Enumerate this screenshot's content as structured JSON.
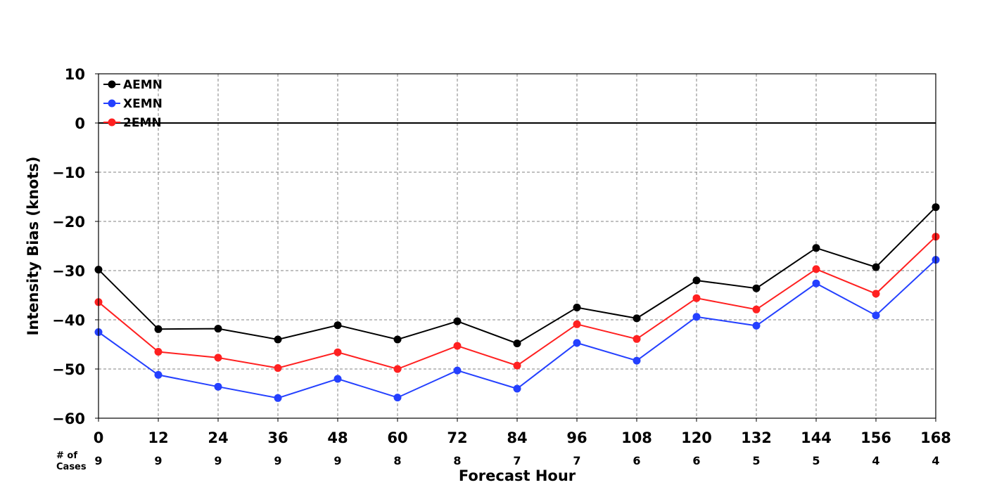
{
  "chart_data": {
    "type": "line",
    "xlabel": "Forecast Hour",
    "ylabel": "Intensity Bias (knots)",
    "ylim": [
      -60,
      10
    ],
    "y_ticks": [
      10,
      0,
      -10,
      -20,
      -30,
      -40,
      -50,
      -60
    ],
    "y_tick_labels": [
      "10",
      "0",
      "−10",
      "−20",
      "−30",
      "−40",
      "−50",
      "−60"
    ],
    "x": [
      0,
      12,
      24,
      36,
      48,
      60,
      72,
      84,
      96,
      108,
      120,
      132,
      144,
      156,
      168
    ],
    "x_tick_labels": [
      "0",
      "12",
      "24",
      "36",
      "48",
      "60",
      "72",
      "84",
      "96",
      "108",
      "120",
      "132",
      "144",
      "156",
      "168"
    ],
    "cases_label": "# of\nCases",
    "cases": [
      "9",
      "9",
      "9",
      "9",
      "9",
      "8",
      "8",
      "7",
      "7",
      "6",
      "6",
      "5",
      "5",
      "4",
      "4"
    ],
    "grid": true,
    "zero_line": true,
    "legend_position": "top-left",
    "series": [
      {
        "name": "AEMN",
        "color": "#000000",
        "values": [
          -29.8,
          -41.9,
          -41.8,
          -44.0,
          -41.1,
          -44.0,
          -40.3,
          -44.8,
          -37.5,
          -39.7,
          -32.0,
          -33.6,
          -25.4,
          -29.3,
          -17.1
        ]
      },
      {
        "name": "XEMN",
        "color": "#2440ff",
        "values": [
          -42.5,
          -51.2,
          -53.6,
          -55.9,
          -52.0,
          -55.8,
          -50.3,
          -54.0,
          -44.7,
          -48.3,
          -39.4,
          -41.2,
          -32.6,
          -39.1,
          -27.8
        ]
      },
      {
        "name": "2EMN",
        "color": "#ff2020",
        "values": [
          -36.4,
          -46.5,
          -47.7,
          -49.8,
          -46.6,
          -50.0,
          -45.3,
          -49.3,
          -40.9,
          -43.9,
          -35.6,
          -37.9,
          -29.7,
          -34.7,
          -23.1
        ]
      }
    ]
  }
}
